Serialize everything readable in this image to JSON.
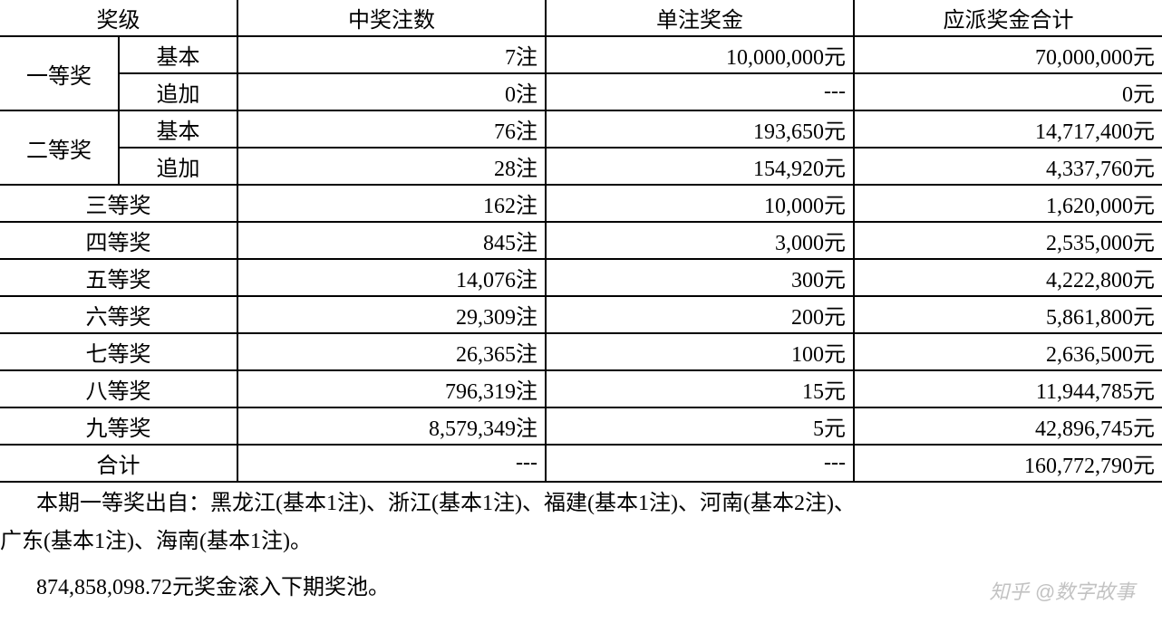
{
  "table": {
    "headers": {
      "level": "奖级",
      "count": "中奖注数",
      "unit": "单注奖金",
      "total": "应派奖金合计"
    },
    "rows": [
      {
        "level": "一等奖",
        "sub": "基本",
        "count": "7注",
        "unit": "10,000,000元",
        "total": "70,000,000元"
      },
      {
        "level": "",
        "sub": "追加",
        "count": "0注",
        "unit": "---",
        "total": "0元"
      },
      {
        "level": "二等奖",
        "sub": "基本",
        "count": "76注",
        "unit": "193,650元",
        "total": "14,717,400元"
      },
      {
        "level": "",
        "sub": "追加",
        "count": "28注",
        "unit": "154,920元",
        "total": "4,337,760元"
      },
      {
        "level": "三等奖",
        "sub": "",
        "count": "162注",
        "unit": "10,000元",
        "total": "1,620,000元"
      },
      {
        "level": "四等奖",
        "sub": "",
        "count": "845注",
        "unit": "3,000元",
        "total": "2,535,000元"
      },
      {
        "level": "五等奖",
        "sub": "",
        "count": "14,076注",
        "unit": "300元",
        "total": "4,222,800元"
      },
      {
        "level": "六等奖",
        "sub": "",
        "count": "29,309注",
        "unit": "200元",
        "total": "5,861,800元"
      },
      {
        "level": "七等奖",
        "sub": "",
        "count": "26,365注",
        "unit": "100元",
        "total": "2,636,500元"
      },
      {
        "level": "八等奖",
        "sub": "",
        "count": "796,319注",
        "unit": "15元",
        "total": "11,944,785元"
      },
      {
        "level": "九等奖",
        "sub": "",
        "count": "8,579,349注",
        "unit": "5元",
        "total": "42,896,745元"
      },
      {
        "level": "合计",
        "sub": "",
        "count": "---",
        "unit": "---",
        "total": "160,772,790元"
      }
    ]
  },
  "notes": {
    "line1": "本期一等奖出自：黑龙江(基本1注)、浙江(基本1注)、福建(基本1注)、河南(基本2注)、",
    "line2": "广东(基本1注)、海南(基本1注)。",
    "line3": "874,858,098.72元奖金滚入下期奖池。"
  },
  "watermark": "知乎 @数字故事"
}
